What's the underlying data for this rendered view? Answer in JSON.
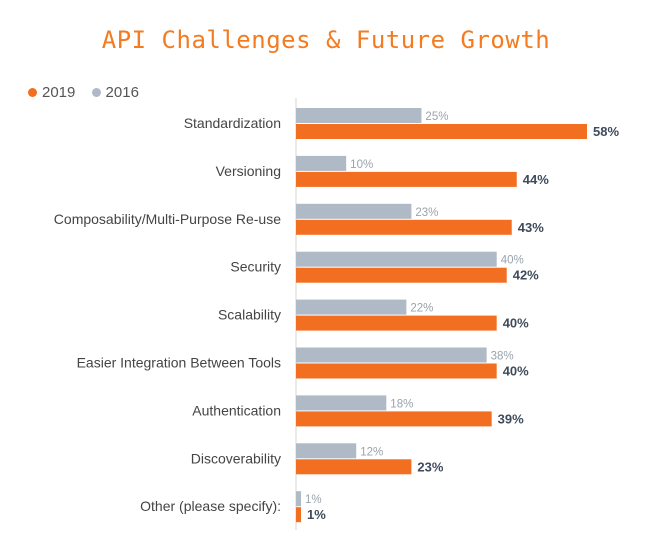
{
  "chart_data": {
    "type": "bar",
    "orientation": "horizontal",
    "title": "API Challenges & Future Growth",
    "legend_position": "top-left",
    "categories": [
      "Standardization",
      "Versioning",
      "Composability/Multi-Purpose Re-use",
      "Security",
      "Scalability",
      "Easier Integration Between Tools",
      "Authentication",
      "Discoverability",
      "Other (please specify):"
    ],
    "series": [
      {
        "name": "2016",
        "color": "#b0b9c6",
        "values": [
          25,
          10,
          23,
          40,
          22,
          38,
          18,
          12,
          1
        ],
        "labels": [
          "25%",
          "10%",
          "23%",
          "40%",
          "22%",
          "38%",
          "18%",
          "12%",
          "1%"
        ]
      },
      {
        "name": "2019",
        "color": "#f26f21",
        "values": [
          58,
          44,
          43,
          42,
          40,
          40,
          39,
          23,
          1
        ],
        "labels": [
          "58%",
          "44%",
          "43%",
          "42%",
          "40%",
          "40%",
          "39%",
          "23%",
          "1%"
        ]
      }
    ],
    "legend_order": [
      "2019",
      "2016"
    ],
    "xlim": [
      0,
      100
    ],
    "grid": false
  }
}
